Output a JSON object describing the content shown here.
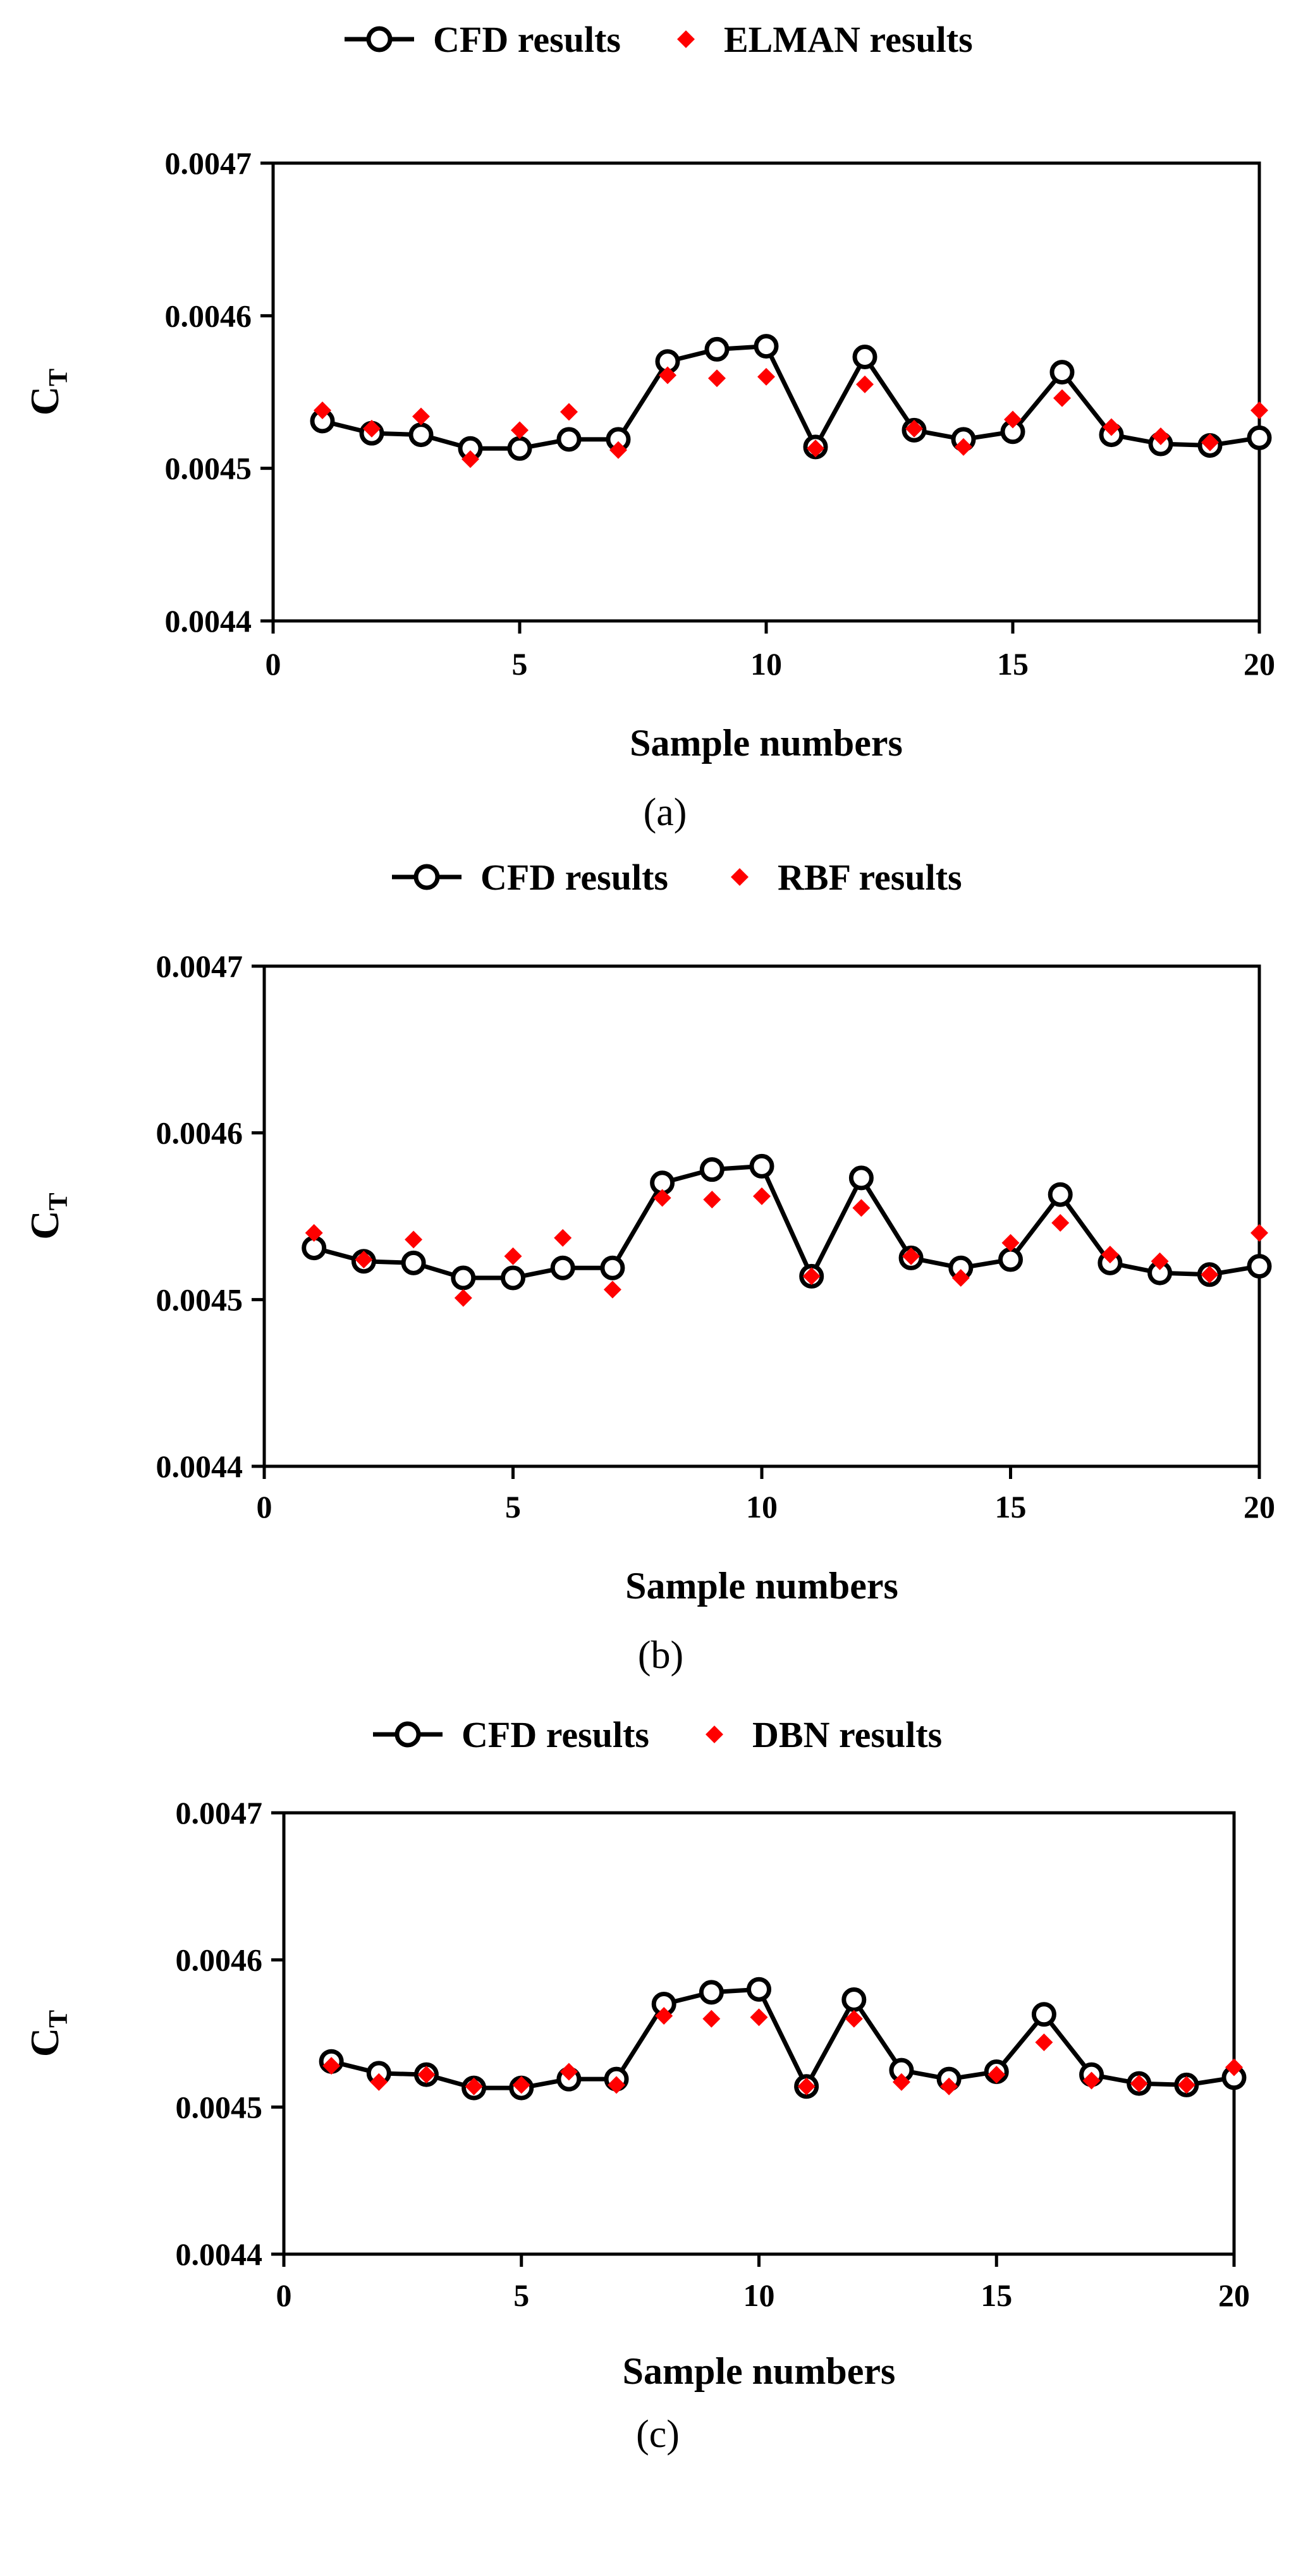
{
  "chart_data": [
    {
      "type": "line",
      "panel_label": "(a)",
      "title": "",
      "xlabel": "Sample numbers",
      "ylabel": {
        "main": "C",
        "sub": "T"
      },
      "xlim": [
        0,
        20
      ],
      "ylim": [
        0.0044,
        0.0047
      ],
      "xticks": [
        "0",
        "5",
        "10",
        "15",
        "20"
      ],
      "yticks": [
        "0.0044",
        "0.0045",
        "0.0046",
        "0.0047"
      ],
      "grid": false,
      "legend_position": "top",
      "x": [
        1,
        2,
        3,
        4,
        5,
        6,
        7,
        8,
        9,
        10,
        11,
        12,
        13,
        14,
        15,
        16,
        17,
        18,
        19,
        20
      ],
      "series": [
        {
          "name": "CFD results",
          "style": "line-open-circle",
          "color": "#000000",
          "values": [
            0.004531,
            0.004523,
            0.004522,
            0.004513,
            0.004513,
            0.004519,
            0.004519,
            0.00457,
            0.004578,
            0.00458,
            0.004514,
            0.004573,
            0.004525,
            0.004519,
            0.004524,
            0.004563,
            0.004522,
            0.004516,
            0.004515,
            0.00452
          ]
        },
        {
          "name": "ELMAN results",
          "style": "diamond",
          "color": "#ff0000",
          "values": [
            0.004538,
            0.004526,
            0.004534,
            0.004506,
            0.004525,
            0.004537,
            0.004512,
            0.004561,
            0.004559,
            0.00456,
            0.004513,
            0.004555,
            0.004526,
            0.004514,
            0.004532,
            0.004546,
            0.004527,
            0.004521,
            0.004517,
            0.004538
          ]
        }
      ]
    },
    {
      "type": "line",
      "panel_label": "(b)",
      "title": "",
      "xlabel": "Sample numbers",
      "ylabel": {
        "main": "C",
        "sub": "T"
      },
      "xlim": [
        0,
        20
      ],
      "ylim": [
        0.0044,
        0.0047
      ],
      "xticks": [
        "0",
        "5",
        "10",
        "15",
        "20"
      ],
      "yticks": [
        "0.0044",
        "0.0045",
        "0.0046",
        "0.0047"
      ],
      "grid": false,
      "legend_position": "top",
      "x": [
        1,
        2,
        3,
        4,
        5,
        6,
        7,
        8,
        9,
        10,
        11,
        12,
        13,
        14,
        15,
        16,
        17,
        18,
        19,
        20
      ],
      "series": [
        {
          "name": "CFD results",
          "style": "line-open-circle",
          "color": "#000000",
          "values": [
            0.004531,
            0.004523,
            0.004522,
            0.004513,
            0.004513,
            0.004519,
            0.004519,
            0.00457,
            0.004578,
            0.00458,
            0.004514,
            0.004573,
            0.004525,
            0.004519,
            0.004524,
            0.004563,
            0.004522,
            0.004516,
            0.004515,
            0.00452
          ]
        },
        {
          "name": "RBF results",
          "style": "diamond",
          "color": "#ff0000",
          "values": [
            0.00454,
            0.004524,
            0.004536,
            0.004501,
            0.004526,
            0.004537,
            0.004506,
            0.004561,
            0.00456,
            0.004562,
            0.004514,
            0.004555,
            0.004526,
            0.004513,
            0.004534,
            0.004546,
            0.004527,
            0.004523,
            0.004515,
            0.00454
          ]
        }
      ]
    },
    {
      "type": "line",
      "panel_label": "(c)",
      "title": "",
      "xlabel": "Sample numbers",
      "ylabel": {
        "main": "C",
        "sub": "T"
      },
      "xlim": [
        0,
        20
      ],
      "ylim": [
        0.0044,
        0.0047
      ],
      "xticks": [
        "0",
        "5",
        "10",
        "15",
        "20"
      ],
      "yticks": [
        "0.0044",
        "0.0045",
        "0.0046",
        "0.0047"
      ],
      "grid": false,
      "legend_position": "top",
      "x": [
        1,
        2,
        3,
        4,
        5,
        6,
        7,
        8,
        9,
        10,
        11,
        12,
        13,
        14,
        15,
        16,
        17,
        18,
        19,
        20
      ],
      "series": [
        {
          "name": "CFD results",
          "style": "line-open-circle",
          "color": "#000000",
          "values": [
            0.004531,
            0.004523,
            0.004522,
            0.004513,
            0.004513,
            0.004519,
            0.004519,
            0.00457,
            0.004578,
            0.00458,
            0.004514,
            0.004573,
            0.004525,
            0.004519,
            0.004524,
            0.004563,
            0.004522,
            0.004516,
            0.004515,
            0.00452
          ]
        },
        {
          "name": "DBN results",
          "style": "diamond",
          "color": "#ff0000",
          "values": [
            0.004528,
            0.004517,
            0.004522,
            0.004514,
            0.004515,
            0.004524,
            0.004515,
            0.004562,
            0.00456,
            0.004561,
            0.004514,
            0.00456,
            0.004517,
            0.004514,
            0.004522,
            0.004544,
            0.004518,
            0.004516,
            0.004515,
            0.004527
          ]
        }
      ]
    }
  ]
}
